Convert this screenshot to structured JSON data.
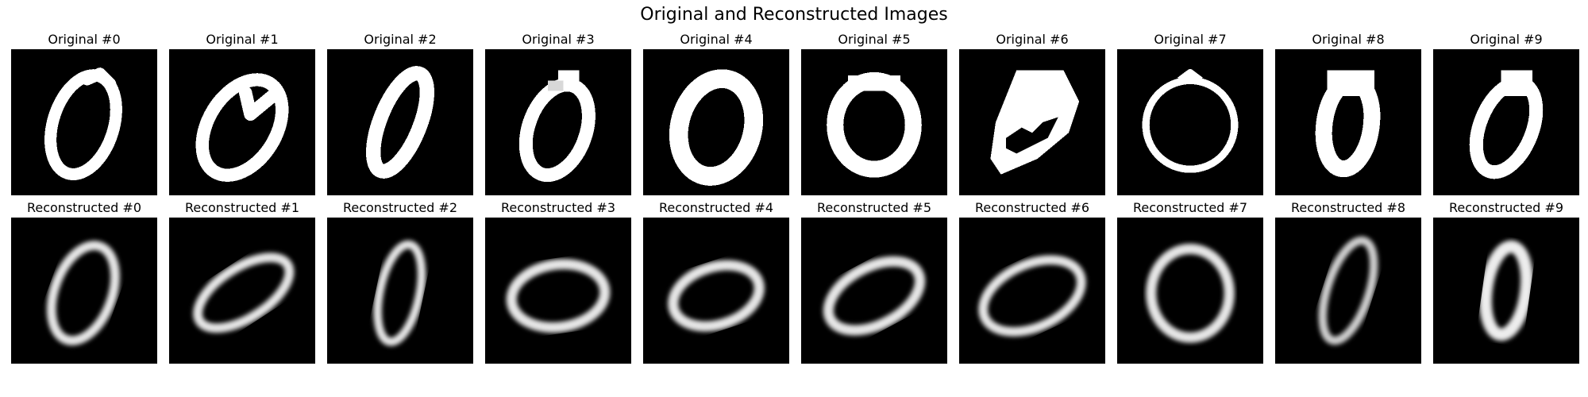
{
  "title": "Original and Reconstructed Images",
  "colormap": "gray",
  "background_color": "#000000",
  "rows": [
    {
      "row": "original",
      "panels": [
        {
          "label": "Original #0",
          "digit": "0",
          "style": "thick-blocky"
        },
        {
          "label": "Original #1",
          "digit": "0",
          "style": "thick-blocky"
        },
        {
          "label": "Original #2",
          "digit": "0",
          "style": "thick-blocky"
        },
        {
          "label": "Original #3",
          "digit": "0",
          "style": "thick-blocky"
        },
        {
          "label": "Original #4",
          "digit": "0",
          "style": "thick-blocky"
        },
        {
          "label": "Original #5",
          "digit": "0",
          "style": "thick-blocky"
        },
        {
          "label": "Original #6",
          "digit": "0",
          "style": "thick-blocky"
        },
        {
          "label": "Original #7",
          "digit": "0",
          "style": "thin-blocky"
        },
        {
          "label": "Original #8",
          "digit": "0",
          "style": "thick-blocky"
        },
        {
          "label": "Original #9",
          "digit": "0",
          "style": "thick-blocky"
        }
      ]
    },
    {
      "row": "reconstructed",
      "panels": [
        {
          "label": "Reconstructed #0",
          "digit": "0",
          "style": "blurry"
        },
        {
          "label": "Reconstructed #1",
          "digit": "0",
          "style": "blurry"
        },
        {
          "label": "Reconstructed #2",
          "digit": "0",
          "style": "blurry"
        },
        {
          "label": "Reconstructed #3",
          "digit": "0",
          "style": "blurry"
        },
        {
          "label": "Reconstructed #4",
          "digit": "0",
          "style": "blurry"
        },
        {
          "label": "Reconstructed #5",
          "digit": "0",
          "style": "blurry"
        },
        {
          "label": "Reconstructed #6",
          "digit": "0",
          "style": "blurry"
        },
        {
          "label": "Reconstructed #7",
          "digit": "0",
          "style": "blurry"
        },
        {
          "label": "Reconstructed #8",
          "digit": "0",
          "style": "blurry"
        },
        {
          "label": "Reconstructed #9",
          "digit": "0",
          "style": "blurry"
        }
      ]
    }
  ]
}
